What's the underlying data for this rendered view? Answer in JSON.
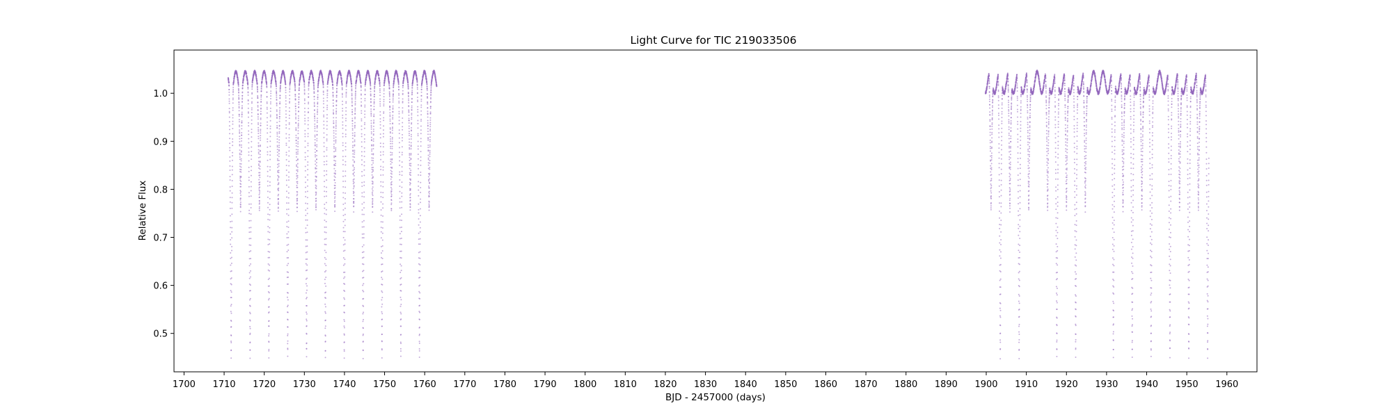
{
  "chart_data": {
    "type": "scatter",
    "title": "Light Curve for TIC 219033506",
    "xlabel": "BJD - 2457000 (days)",
    "ylabel": "Relative Flux",
    "xlim": [
      1697.5,
      1967.5
    ],
    "ylim": [
      0.42,
      1.09
    ],
    "x_ticks": [
      1700,
      1710,
      1720,
      1730,
      1740,
      1750,
      1760,
      1770,
      1780,
      1790,
      1800,
      1810,
      1820,
      1830,
      1840,
      1850,
      1860,
      1870,
      1880,
      1890,
      1900,
      1910,
      1920,
      1930,
      1940,
      1950,
      1960
    ],
    "y_ticks": [
      0.5,
      0.6,
      0.7,
      0.8,
      0.9,
      1.0
    ],
    "y_tick_labels": [
      "0.5",
      "0.6",
      "0.7",
      "0.8",
      "0.9",
      "1.0"
    ],
    "grid": false,
    "color": "#9467bd",
    "series": [
      {
        "segments": [
          {
            "start": 1711.0,
            "end": 1763.0
          },
          {
            "start": 1899.8,
            "end": 1955.5
          }
        ],
        "baseline": 1.0,
        "out_of_eclipse_peak": 1.045,
        "primary_eclipse_depth": 0.45,
        "secondary_eclipse_depth": 0.755,
        "primary_eclipse_times": [
          1711.75,
          1716.47,
          1721.15,
          1725.85,
          1730.55,
          1735.25,
          1739.95,
          1744.65,
          1749.35,
          1754.05,
          1758.7,
          1903.5,
          1908.2,
          1917.6,
          1922.3,
          1931.7,
          1936.4,
          1941.1,
          1945.8,
          1950.5,
          1955.2
        ],
        "secondary_eclipse_times": [
          1714.1,
          1718.8,
          1723.5,
          1728.2,
          1732.9,
          1737.6,
          1742.3,
          1747.0,
          1751.7,
          1756.4,
          1761.1,
          1901.2,
          1905.9,
          1910.6,
          1915.3,
          1920.0,
          1924.7,
          1934.1,
          1938.8,
          1948.2,
          1952.9
        ]
      }
    ]
  }
}
